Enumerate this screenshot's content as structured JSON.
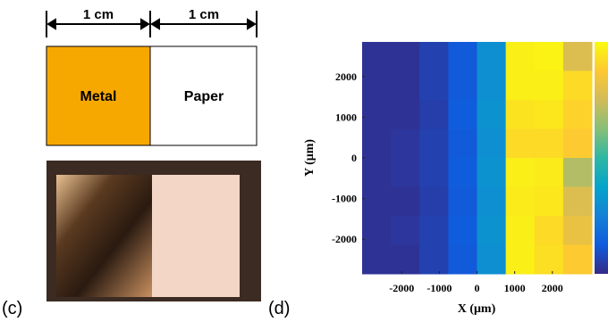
{
  "panels": {
    "c": {
      "label": "(c)",
      "dimensions": [
        "1 cm",
        "1 cm"
      ],
      "regions": [
        "Metal",
        "Paper"
      ]
    },
    "d": {
      "label": "(d)"
    }
  },
  "chart_data": {
    "type": "heatmap",
    "xlabel": "X (μm)",
    "ylabel": "Y (μm)",
    "colormap": "parula",
    "clim": [
      0,
      1
    ],
    "xlim": [
      -3050,
      3050
    ],
    "ylim": [
      -2850,
      2850
    ],
    "xticks": [
      -2000,
      -1000,
      0,
      1000,
      2000
    ],
    "yticks": [
      -2000,
      -1000,
      0,
      1000,
      2000
    ],
    "values": [
      [
        0.02,
        0.02,
        0.06,
        0.12,
        0.3,
        0.97,
        0.98,
        0.78
      ],
      [
        0.02,
        0.02,
        0.06,
        0.12,
        0.3,
        0.97,
        0.97,
        0.92
      ],
      [
        0.02,
        0.02,
        0.05,
        0.13,
        0.31,
        0.94,
        0.95,
        0.9
      ],
      [
        0.02,
        0.03,
        0.06,
        0.12,
        0.3,
        0.92,
        0.92,
        0.88
      ],
      [
        0.02,
        0.03,
        0.06,
        0.13,
        0.31,
        0.97,
        0.96,
        0.7
      ],
      [
        0.02,
        0.02,
        0.05,
        0.12,
        0.3,
        0.96,
        0.95,
        0.78
      ],
      [
        0.02,
        0.03,
        0.06,
        0.13,
        0.31,
        0.97,
        0.92,
        0.82
      ],
      [
        0.02,
        0.02,
        0.06,
        0.12,
        0.3,
        0.97,
        0.93,
        0.88
      ]
    ]
  }
}
